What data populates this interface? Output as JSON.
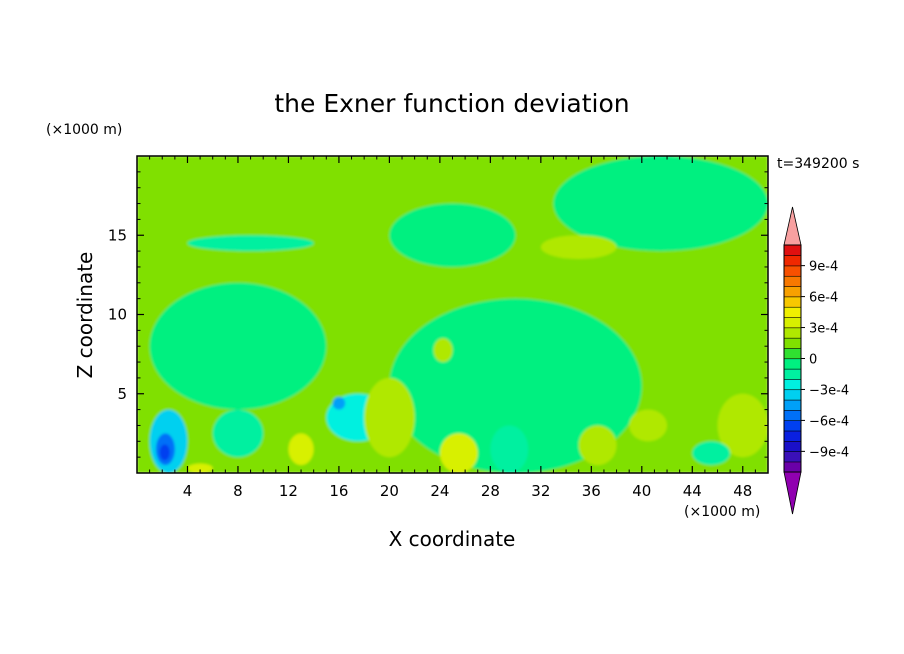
{
  "chart_data": {
    "type": "heatmap",
    "title": "the Exner function deviation",
    "xlabel": "X coordinate",
    "ylabel": "Z coordinate",
    "x_unit": "(×1000 m)",
    "y_unit": "(×1000 m)",
    "time_label": "t=349200 s",
    "xlim": [
      0,
      50
    ],
    "ylim": [
      0,
      20
    ],
    "x_ticks": [
      4,
      8,
      12,
      16,
      20,
      24,
      28,
      32,
      36,
      40,
      44,
      48
    ],
    "y_ticks": [
      5,
      10,
      15
    ],
    "colorbar": {
      "label_values": [
        0.0009,
        0.0006,
        0.0003,
        0,
        -0.0003,
        -0.0006,
        -0.0009
      ],
      "labels": [
        "9e-4",
        "6e-4",
        "3e-4",
        "0",
        "−3e-4",
        "−6e-4",
        "−9e-4"
      ],
      "levels": [
        -0.0011,
        -0.001,
        -0.0009,
        -0.0008,
        -0.0007,
        -0.0006,
        -0.0005,
        -0.0004,
        -0.0003,
        -0.0002,
        -0.0001,
        0,
        0.0001,
        0.0002,
        0.0003,
        0.0004,
        0.0005,
        0.0006,
        0.0007,
        0.0008,
        0.0009,
        0.001,
        0.0011
      ],
      "colors": [
        "#6a00a8",
        "#3a10b8",
        "#1a10c8",
        "#0a20e0",
        "#0040f0",
        "#0070f8",
        "#00a0f8",
        "#00d0f0",
        "#00f0e0",
        "#00f0a0",
        "#00f080",
        "#30e030",
        "#80e000",
        "#b0e800",
        "#d8f000",
        "#f0f000",
        "#f8c800",
        "#f8a000",
        "#f87800",
        "#f85000",
        "#f02800",
        "#e01010"
      ],
      "under_color": "#9000b0",
      "over_color": "#f8a0a0"
    },
    "field_regions": [
      {
        "x": [
          0,
          50
        ],
        "z": [
          0,
          20
        ],
        "value": 0.00012
      },
      {
        "x": [
          0,
          50
        ],
        "z": [
          0,
          7
        ],
        "value": 0.00012
      },
      {
        "x": [
          1,
          15
        ],
        "z": [
          4,
          12
        ],
        "value": -5e-05
      },
      {
        "x": [
          9,
          14
        ],
        "z": [
          17,
          20
        ],
        "value": 0.0001
      },
      {
        "x": [
          20,
          30
        ],
        "z": [
          13,
          17
        ],
        "value": -5e-05
      },
      {
        "x": [
          20,
          40
        ],
        "z": [
          0,
          11
        ],
        "value": -5e-05
      },
      {
        "x": [
          33,
          50
        ],
        "z": [
          14,
          20
        ],
        "value": -5e-05
      },
      {
        "x": [
          4,
          14
        ],
        "z": [
          14,
          15
        ],
        "value": -0.00015
      },
      {
        "x": [
          32,
          38
        ],
        "z": [
          13.5,
          15
        ],
        "value": 0.00025
      },
      {
        "x": [
          1,
          4
        ],
        "z": [
          0,
          4
        ],
        "value": -0.00035
      },
      {
        "x": [
          1.5,
          3
        ],
        "z": [
          0.5,
          2.5
        ],
        "value": -0.00055
      },
      {
        "x": [
          1.8,
          2.6
        ],
        "z": [
          0.8,
          1.8
        ],
        "value": -0.00065
      },
      {
        "x": [
          6,
          10
        ],
        "z": [
          1,
          4
        ],
        "value": -0.0002
      },
      {
        "x": [
          15,
          20
        ],
        "z": [
          2,
          5
        ],
        "value": -0.00025
      },
      {
        "x": [
          15.5,
          16.5
        ],
        "z": [
          4,
          4.8
        ],
        "value": -0.0005
      },
      {
        "x": [
          12,
          14
        ],
        "z": [
          0.5,
          2.5
        ],
        "value": 0.0003
      },
      {
        "x": [
          18,
          22
        ],
        "z": [
          1,
          6
        ],
        "value": 0.00025
      },
      {
        "x": [
          24,
          27
        ],
        "z": [
          0,
          2.5
        ],
        "value": 0.0003
      },
      {
        "x": [
          28,
          31
        ],
        "z": [
          0,
          3
        ],
        "value": -0.00015
      },
      {
        "x": [
          35,
          38
        ],
        "z": [
          0.5,
          3
        ],
        "value": 0.00025
      },
      {
        "x": [
          39,
          42
        ],
        "z": [
          2,
          4
        ],
        "value": 0.0002
      },
      {
        "x": [
          46,
          50
        ],
        "z": [
          1,
          5
        ],
        "value": 0.0002
      },
      {
        "x": [
          44,
          47
        ],
        "z": [
          0.5,
          2
        ],
        "value": -0.00015
      },
      {
        "x": [
          29,
          31
        ],
        "z": [
          9.5,
          11
        ],
        "value": -0.0001
      },
      {
        "x": [
          4,
          6
        ],
        "z": [
          0,
          0.6
        ],
        "value": 0.0003
      },
      {
        "x": [
          23.5,
          25
        ],
        "z": [
          7,
          8.5
        ],
        "value": 0.00025
      }
    ]
  }
}
